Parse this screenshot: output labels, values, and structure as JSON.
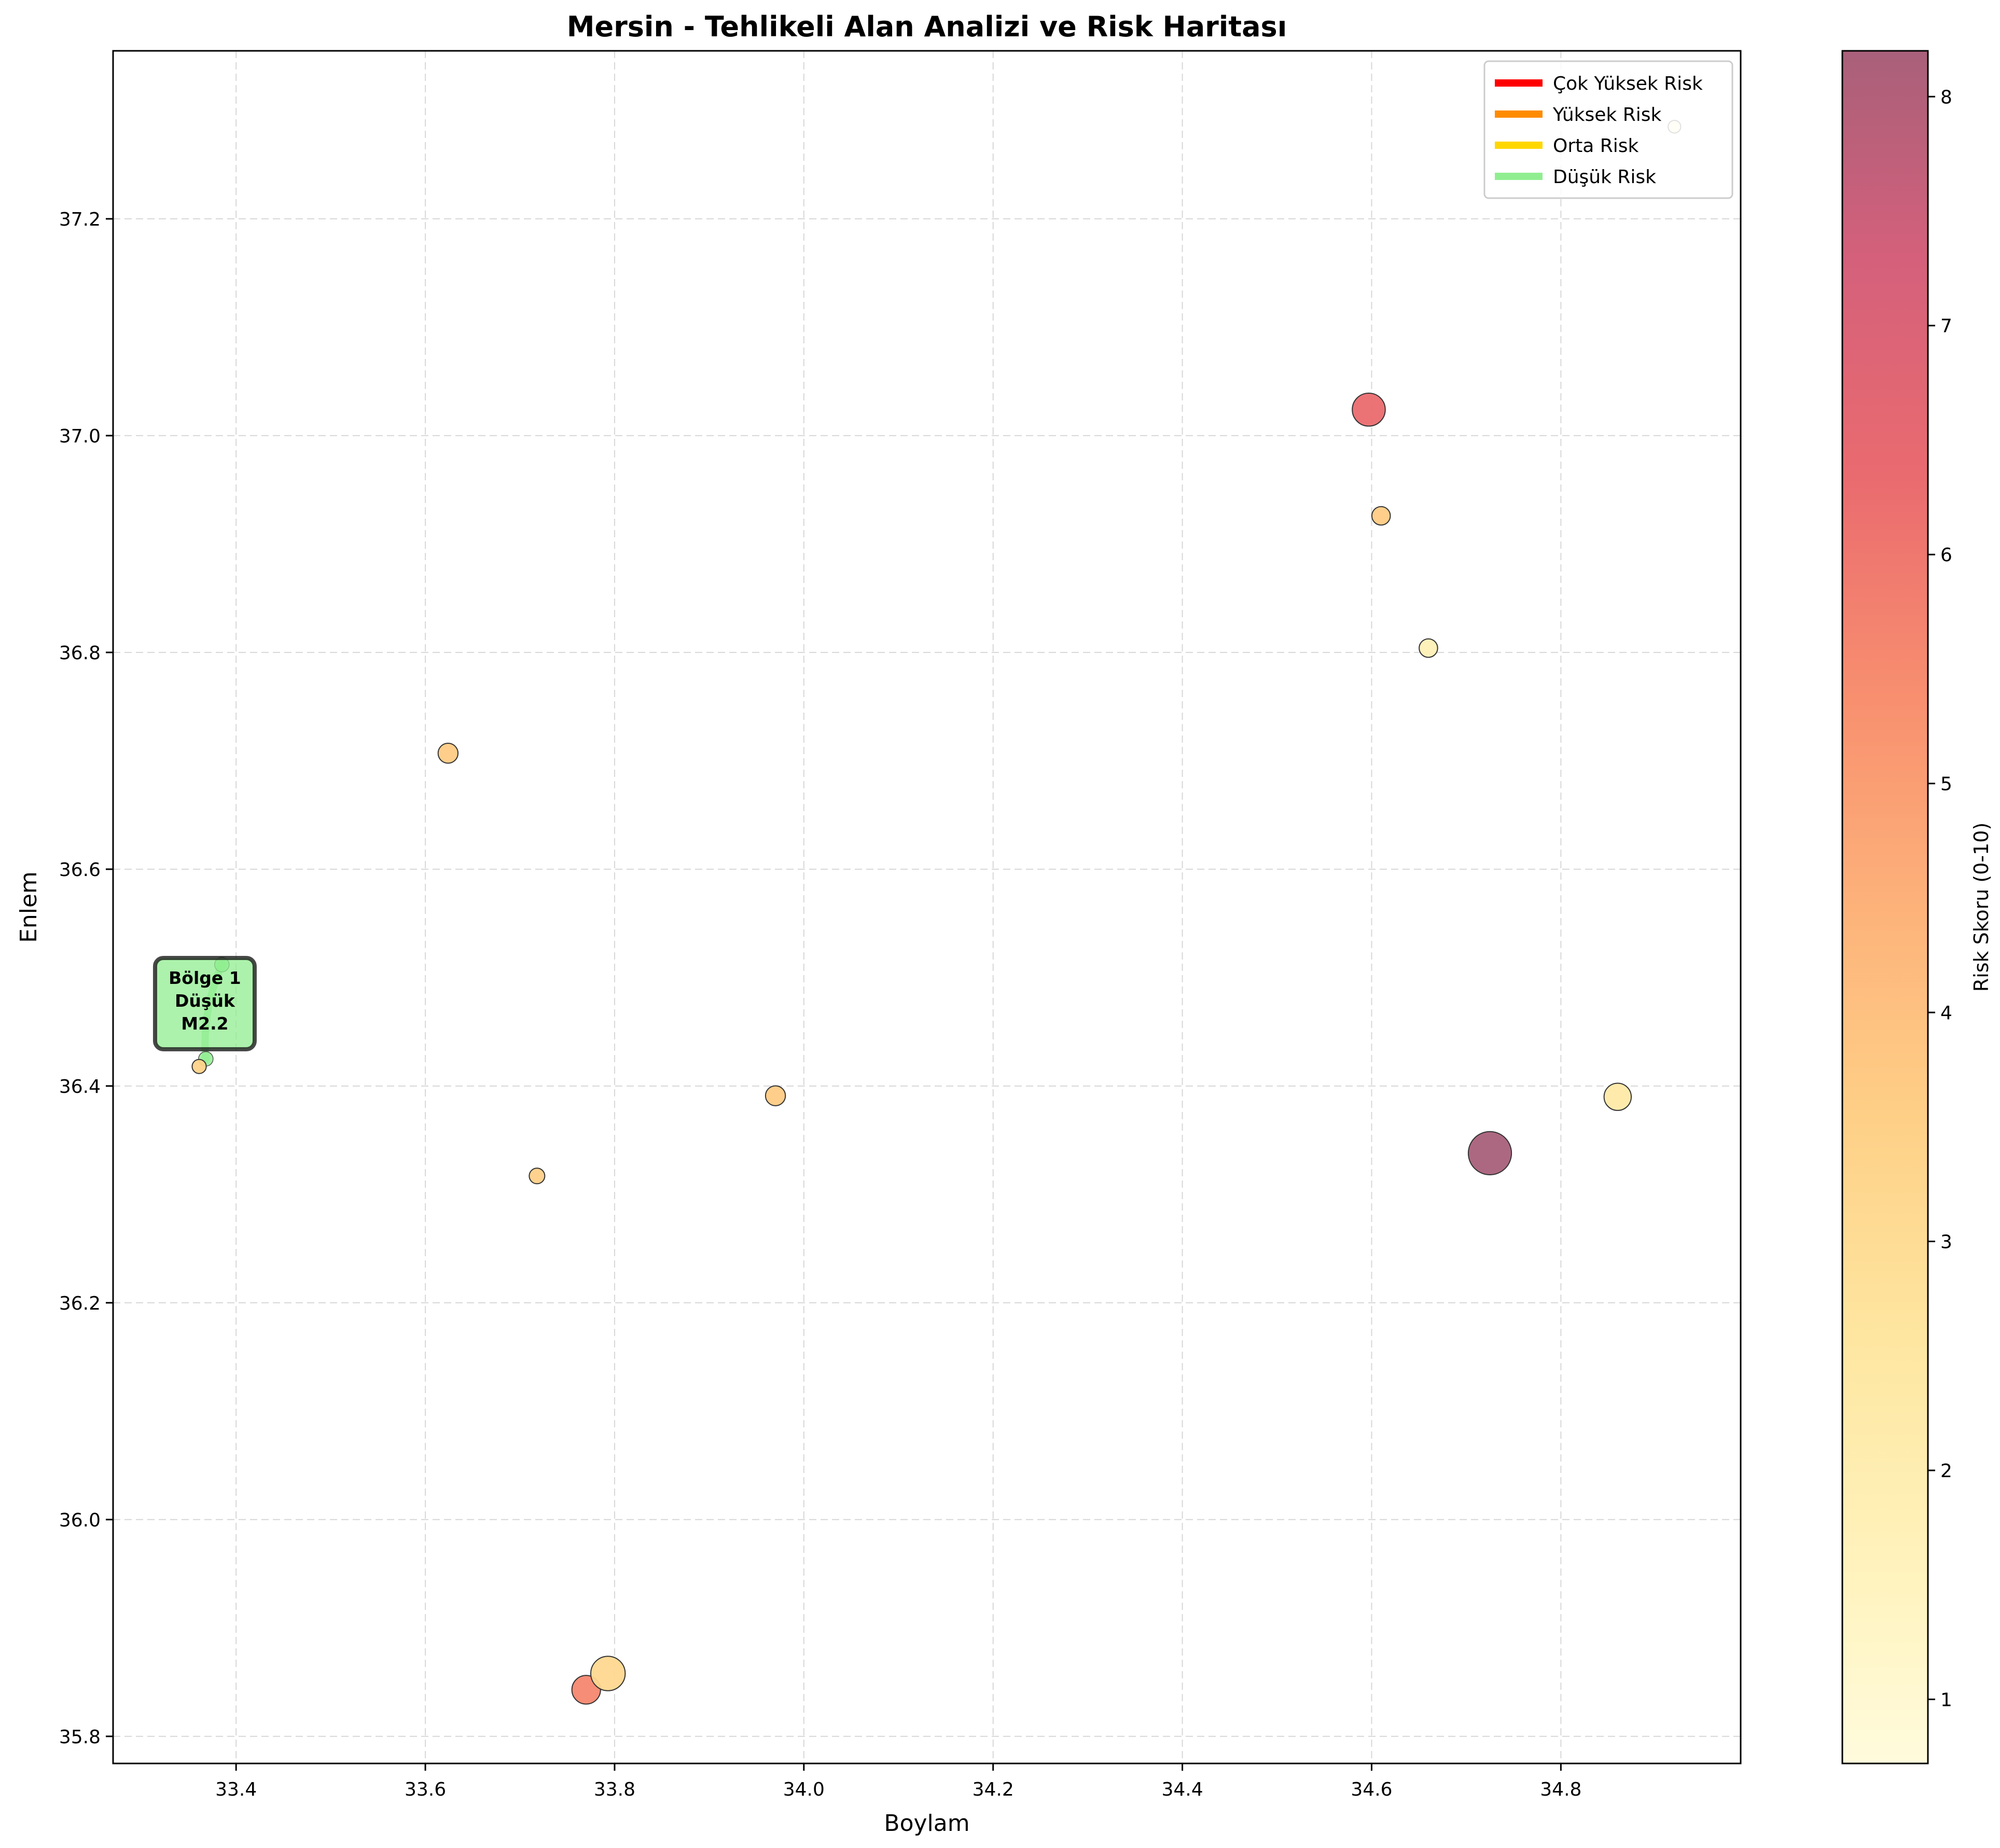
{
  "chart_data": {
    "type": "scatter",
    "title": "Mersin - Tehlikeli Alan Analizi ve Risk Haritası",
    "xlabel": "Boylam",
    "ylabel": "Enlem",
    "xlim": [
      33.27,
      34.99
    ],
    "ylim": [
      35.775,
      37.355
    ],
    "xticks": [
      33.4,
      33.6,
      33.8,
      34.0,
      34.2,
      34.4,
      34.6,
      34.8
    ],
    "yticks": [
      35.8,
      36.0,
      36.2,
      36.4,
      36.6,
      36.8,
      37.0,
      37.2
    ],
    "grid": true,
    "legend": {
      "placement": "top-right",
      "entries": [
        {
          "label": "Çok Yüksek Risk",
          "color": "#ff0000"
        },
        {
          "label": "Yüksek Risk",
          "color": "#ff8c00"
        },
        {
          "label": "Orta Risk",
          "color": "#ffd700"
        },
        {
          "label": "Düşük Risk",
          "color": "#90ee90"
        }
      ]
    },
    "colorbar": {
      "label": "Risk Skoru (0-10)",
      "range": [
        0.72,
        8.2
      ],
      "ticks": [
        1,
        2,
        3,
        4,
        5,
        6,
        7,
        8
      ],
      "colormap": "YlOrRd"
    },
    "points": [
      {
        "x": 34.725,
        "y": 36.338,
        "risk": 8.2,
        "magnitude": 4.6
      },
      {
        "x": 34.597,
        "y": 37.024,
        "risk": 6.3,
        "magnitude": 3.9
      },
      {
        "x": 33.77,
        "y": 35.843,
        "risk": 5.6,
        "magnitude": 3.6
      },
      {
        "x": 33.793,
        "y": 35.858,
        "risk": 3.2,
        "magnitude": 4.0
      },
      {
        "x": 34.86,
        "y": 36.39,
        "risk": 2.3,
        "magnitude": 3.5
      },
      {
        "x": 34.61,
        "y": 36.926,
        "risk": 3.7,
        "magnitude": 2.9
      },
      {
        "x": 34.66,
        "y": 36.804,
        "risk": 1.8,
        "magnitude": 2.9
      },
      {
        "x": 33.624,
        "y": 36.707,
        "risk": 3.7,
        "magnitude": 3.0
      },
      {
        "x": 33.97,
        "y": 36.391,
        "risk": 3.7,
        "magnitude": 3.0
      },
      {
        "x": 33.718,
        "y": 36.317,
        "risk": 3.5,
        "magnitude": 2.7
      },
      {
        "x": 33.361,
        "y": 36.418,
        "risk": 3.4,
        "magnitude": 2.6
      },
      {
        "x": 34.92,
        "y": 37.285,
        "risk": 1.3,
        "magnitude": 2.5
      }
    ],
    "zone": {
      "points": [
        {
          "x": 33.368,
          "y": 36.425
        },
        {
          "x": 33.385,
          "y": 36.512
        }
      ],
      "color": "#90ee90",
      "annotation": {
        "lines": [
          "Bölge 1",
          "Düşük",
          "M2.2"
        ],
        "x": 33.367,
        "y": 36.476
      }
    }
  }
}
